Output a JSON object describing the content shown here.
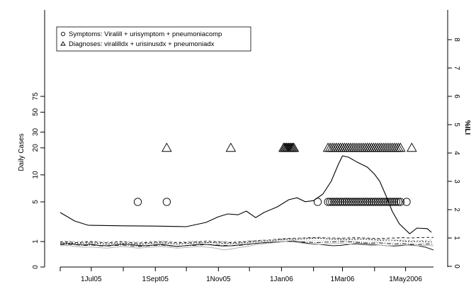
{
  "chart_data": {
    "type": "line",
    "title": "",
    "xlabel": "",
    "ylabel": "Daily Cases",
    "y2label": "%ILI",
    "x_ticks": [
      "1Jul05",
      "1Sept05",
      "1Nov05",
      "1Jan06",
      "1Mar06",
      "1May2006"
    ],
    "y_ticks": [
      "0",
      "1",
      "5",
      "10",
      "20",
      "30",
      "50",
      "75"
    ],
    "y2_ticks": [
      "0",
      "1",
      "2",
      "3",
      "4",
      "5",
      "6",
      "7",
      "8"
    ],
    "legend": {
      "position": "top-left",
      "entries": [
        {
          "symbol": "circle",
          "label": "Symptoms: Viralill + urisymptom + pneumoniacomp"
        },
        {
          "symbol": "triangle",
          "label": "Diagnoses: viralilldx + urisinusdx + pneumoniadx"
        }
      ]
    },
    "ili_series": {
      "axis": "right",
      "color": "#000000",
      "points": [
        [
          "2005-06-01",
          1.9
        ],
        [
          "2005-06-15",
          1.6
        ],
        [
          "2005-06-28",
          1.45
        ],
        [
          "2005-08-01",
          1.43
        ],
        [
          "2005-09-01",
          1.42
        ],
        [
          "2005-10-01",
          1.4
        ],
        [
          "2005-10-20",
          1.55
        ],
        [
          "2005-11-01",
          1.75
        ],
        [
          "2005-11-10",
          1.85
        ],
        [
          "2005-11-20",
          1.82
        ],
        [
          "2005-11-28",
          1.95
        ],
        [
          "2005-12-07",
          1.72
        ],
        [
          "2005-12-15",
          1.9
        ],
        [
          "2005-12-28",
          2.1
        ],
        [
          "2006-01-08",
          2.35
        ],
        [
          "2006-01-16",
          2.42
        ],
        [
          "2006-01-24",
          2.28
        ],
        [
          "2006-02-01",
          2.32
        ],
        [
          "2006-02-10",
          2.55
        ],
        [
          "2006-02-18",
          3.0
        ],
        [
          "2006-02-25",
          3.6
        ],
        [
          "2006-03-01",
          3.9
        ],
        [
          "2006-03-07",
          3.85
        ],
        [
          "2006-03-15",
          3.68
        ],
        [
          "2006-03-25",
          3.5
        ],
        [
          "2006-04-01",
          3.25
        ],
        [
          "2006-04-06",
          3.0
        ],
        [
          "2006-04-12",
          2.5
        ],
        [
          "2006-04-18",
          1.95
        ],
        [
          "2006-04-25",
          1.5
        ],
        [
          "2006-05-05",
          1.15
        ],
        [
          "2006-05-12",
          1.35
        ],
        [
          "2006-05-22",
          1.33
        ],
        [
          "2006-05-26",
          1.2
        ]
      ]
    },
    "alert_markers": {
      "axis": "left",
      "symptoms_y": 5,
      "diagnoses_y": 20,
      "symptoms_dates": [
        "2005-08-15",
        "2005-09-12",
        "2006-02-05",
        "2006-02-15",
        "2006-02-17",
        "2006-02-19",
        "2006-02-21",
        "2006-02-23",
        "2006-02-25",
        "2006-02-27",
        "2006-03-01",
        "2006-03-03",
        "2006-03-05",
        "2006-03-07",
        "2006-03-09",
        "2006-03-11",
        "2006-03-13",
        "2006-03-15",
        "2006-03-17",
        "2006-03-19",
        "2006-03-21",
        "2006-03-23",
        "2006-03-25",
        "2006-03-27",
        "2006-03-29",
        "2006-03-31",
        "2006-04-02",
        "2006-04-04",
        "2006-04-06",
        "2006-04-08",
        "2006-04-10",
        "2006-04-12",
        "2006-04-14",
        "2006-04-16",
        "2006-04-18",
        "2006-04-20",
        "2006-04-22",
        "2006-04-24",
        "2006-04-26",
        "2006-05-02"
      ],
      "diagnoses_dates": [
        "2005-09-12",
        "2005-11-13",
        "2006-01-03",
        "2006-01-04",
        "2006-01-05",
        "2006-01-06",
        "2006-01-07",
        "2006-01-08",
        "2006-01-09",
        "2006-01-10",
        "2006-01-11",
        "2006-01-12",
        "2006-01-13",
        "2006-02-15",
        "2006-02-17",
        "2006-02-19",
        "2006-02-21",
        "2006-02-23",
        "2006-02-25",
        "2006-02-27",
        "2006-03-01",
        "2006-03-03",
        "2006-03-05",
        "2006-03-07",
        "2006-03-09",
        "2006-03-11",
        "2006-03-13",
        "2006-03-15",
        "2006-03-17",
        "2006-03-19",
        "2006-03-21",
        "2006-03-23",
        "2006-03-25",
        "2006-03-27",
        "2006-03-29",
        "2006-03-31",
        "2006-04-02",
        "2006-04-04",
        "2006-04-06",
        "2006-04-08",
        "2006-04-10",
        "2006-04-12",
        "2006-04-14",
        "2006-04-16",
        "2006-04-18",
        "2006-04-20",
        "2006-04-22",
        "2006-04-24",
        "2006-04-26",
        "2006-05-07"
      ]
    },
    "daily_series": [
      {
        "color": "#000000",
        "dash": "solid",
        "values": [
          0.8,
          0.85,
          0.78,
          0.75,
          0.8,
          0.72,
          0.7,
          0.75,
          0.8,
          0.78,
          0.72,
          0.7,
          0.75,
          0.8,
          0.72,
          0.65,
          0.7,
          0.75,
          0.8,
          0.78,
          0.72,
          0.68,
          0.7,
          0.75,
          0.8,
          0.85,
          0.9,
          0.95,
          0.98,
          1.0,
          1.05,
          0.95,
          0.85,
          0.8,
          0.75,
          0.7,
          0.72,
          0.78,
          0.85,
          0.82,
          0.78,
          0.75,
          0.7,
          0.68,
          0.72,
          0.75,
          0.7,
          0.6,
          0.45
        ]
      },
      {
        "color": "#000000",
        "dash": "4,3",
        "values": [
          0.95,
          0.98,
          0.92,
          0.95,
          0.98,
          0.94,
          0.9,
          0.95,
          0.98,
          0.92,
          0.88,
          0.92,
          0.95,
          0.98,
          0.95,
          0.9,
          0.92,
          0.95,
          0.98,
          1.0,
          0.98,
          0.95,
          0.92,
          0.95,
          1.0,
          1.05,
          1.1,
          1.15,
          1.2,
          1.25,
          1.28,
          1.3,
          1.32,
          1.35,
          1.32,
          1.3,
          1.28,
          1.3,
          1.32,
          1.3,
          1.28,
          1.25,
          1.28,
          1.3,
          1.32,
          1.3,
          1.32,
          1.35,
          1.35
        ]
      },
      {
        "color": "#000000",
        "dash": "2,2",
        "values": [
          0.88,
          0.9,
          0.85,
          0.88,
          0.9,
          0.85,
          0.82,
          0.86,
          0.88,
          0.84,
          0.8,
          0.84,
          0.88,
          0.9,
          0.86,
          0.82,
          0.85,
          0.88,
          0.9,
          0.92,
          0.9,
          0.86,
          0.84,
          0.88,
          0.92,
          0.98,
          1.02,
          1.08,
          1.12,
          1.18,
          1.2,
          1.22,
          1.25,
          1.28,
          1.25,
          1.2,
          1.18,
          1.15,
          1.18,
          1.2,
          1.15,
          1.1,
          1.12,
          1.1,
          1.05,
          1.0,
          1.02,
          1.0,
          0.95
        ]
      },
      {
        "color": "#000000",
        "dash": "6,2,1,2",
        "values": [
          0.78,
          0.8,
          0.76,
          0.72,
          0.75,
          0.7,
          0.68,
          0.72,
          0.75,
          0.7,
          0.65,
          0.68,
          0.72,
          0.75,
          0.7,
          0.66,
          0.7,
          0.72,
          0.75,
          0.78,
          0.75,
          0.72,
          0.7,
          0.72,
          0.78,
          0.85,
          0.9,
          0.92,
          0.95,
          1.0,
          1.02,
          0.98,
          0.95,
          0.92,
          0.95,
          0.98,
          1.0,
          0.98,
          0.95,
          0.9,
          0.88,
          0.9,
          0.85,
          0.82,
          0.85,
          0.8,
          0.78,
          0.82,
          0.8
        ]
      },
      {
        "color": "#aaaaaa",
        "dash": "solid",
        "values": [
          0.7,
          0.72,
          0.65,
          0.6,
          0.62,
          0.58,
          0.55,
          0.6,
          0.65,
          0.6,
          0.55,
          0.58,
          0.62,
          0.65,
          0.6,
          0.55,
          0.58,
          0.62,
          0.65,
          0.6,
          0.55,
          0.45,
          0.5,
          0.58,
          0.65,
          0.75,
          0.82,
          0.88,
          0.95,
          1.0,
          0.95,
          0.88,
          0.82,
          0.78,
          0.8,
          0.85,
          0.88,
          0.82,
          0.78,
          0.75,
          0.72,
          0.75,
          0.7,
          0.72,
          0.75,
          0.72,
          0.7,
          0.72,
          0.7
        ]
      },
      {
        "color": "#aaaaaa",
        "dash": "3,3",
        "values": [
          1.02,
          1.05,
          1.0,
          1.02,
          1.05,
          1.0,
          0.98,
          1.02,
          1.05,
          1.0,
          0.96,
          1.0,
          1.02,
          1.05,
          1.0,
          0.96,
          1.0,
          1.02,
          1.05,
          1.08,
          1.05,
          1.0,
          0.98,
          1.02,
          1.05,
          1.08,
          1.12,
          1.15,
          1.18,
          1.22,
          1.25,
          1.28,
          1.3,
          1.32,
          1.3,
          1.28,
          1.25,
          1.22,
          1.25,
          1.28,
          1.22,
          1.18,
          1.15,
          1.1,
          1.12,
          1.08,
          1.05,
          1.1,
          1.12
        ]
      },
      {
        "color": "#aaaaaa",
        "dash": "1,2",
        "values": [
          0.9,
          0.88,
          0.82,
          0.85,
          0.88,
          0.82,
          0.78,
          0.82,
          0.85,
          0.8,
          0.76,
          0.8,
          0.85,
          0.88,
          0.82,
          0.78,
          0.82,
          0.85,
          0.88,
          0.9,
          0.86,
          0.82,
          0.8,
          0.84,
          0.9,
          0.95,
          1.0,
          1.05,
          1.08,
          1.12,
          1.15,
          1.12,
          1.1,
          1.08,
          1.1,
          1.12,
          1.1,
          1.05,
          1.02,
          1.0,
          0.98,
          1.0,
          0.96,
          0.95,
          0.98,
          0.95,
          0.92,
          0.95,
          0.98
        ]
      }
    ]
  }
}
